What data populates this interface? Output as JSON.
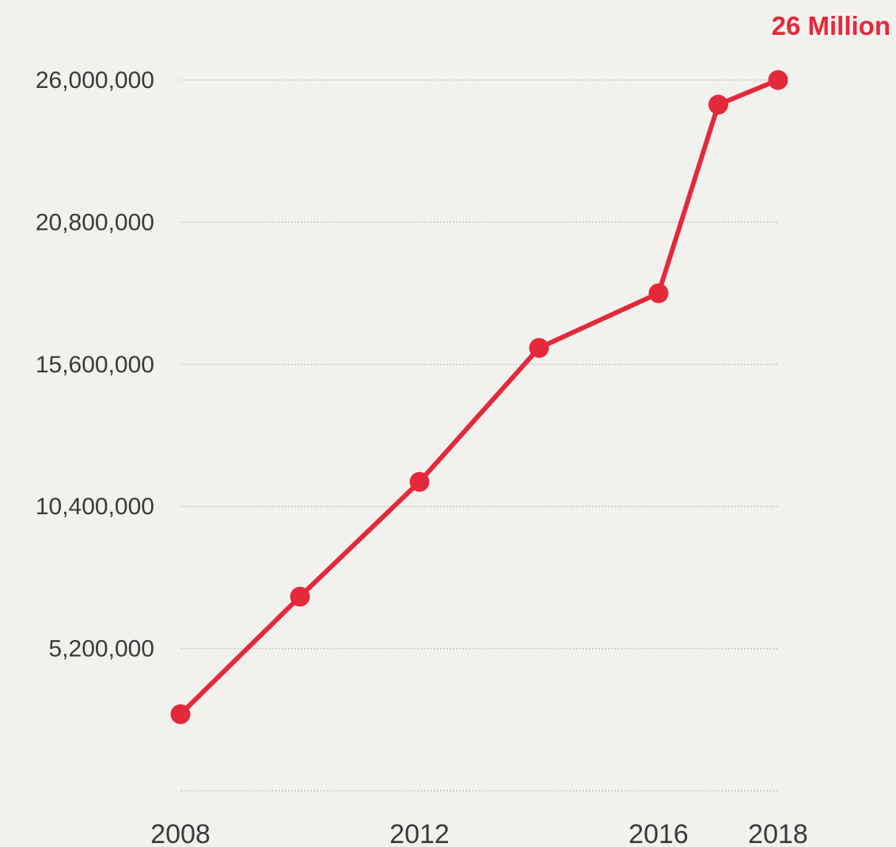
{
  "chart_data": {
    "type": "line",
    "x": [
      2008,
      2010,
      2012,
      2014,
      2016,
      2017,
      2018
    ],
    "series": [
      {
        "values": [
          2800000,
          7100000,
          11300000,
          16200000,
          18200000,
          25100000,
          26000000
        ]
      }
    ],
    "xticks": [
      2008,
      2012,
      2016,
      2018
    ],
    "xtick_labels": [
      "2008",
      "2012",
      "2016",
      "2018"
    ],
    "yticks": [
      5200000,
      10400000,
      15600000,
      20800000,
      26000000
    ],
    "ytick_labels": [
      "5,200,000",
      "10,400,000",
      "15,600,000",
      "20,800,000",
      "26,000,000"
    ],
    "xlim": [
      2008,
      2018
    ],
    "ylim": [
      0,
      26000000
    ],
    "grid": true,
    "annotation": "26 Million",
    "title": "",
    "xlabel": "",
    "ylabel": "",
    "colors": {
      "line": "#e4293a",
      "annotation": "#e4293a",
      "background": "#f3f1ee"
    }
  }
}
